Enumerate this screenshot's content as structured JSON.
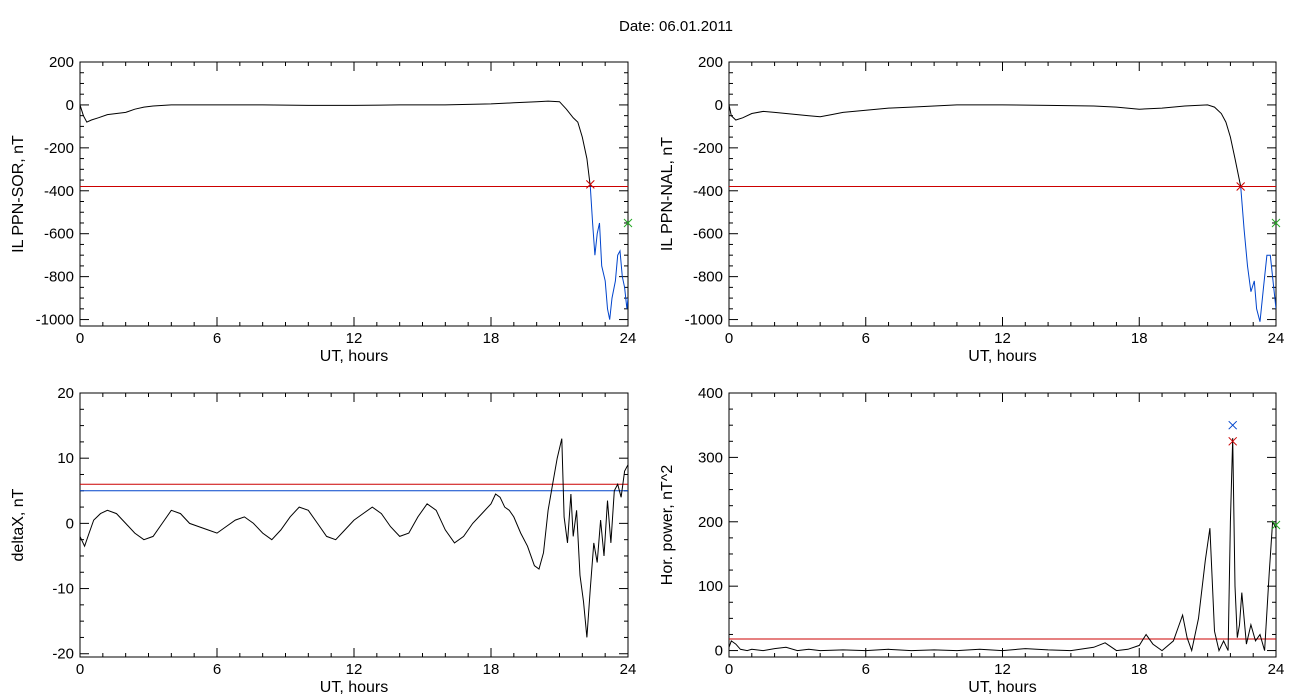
{
  "figure_title": "Date:  06.01.2011",
  "chart_data": [
    {
      "type": "line",
      "id": "panel-1",
      "xlabel": "UT, hours",
      "ylabel": "IL PPN-SOR, nT",
      "xlim": [
        0,
        24
      ],
      "ylim": [
        -1030,
        200
      ],
      "xticks": [
        0,
        6,
        12,
        18,
        24
      ],
      "yticks": [
        -1000,
        -800,
        -600,
        -400,
        -200,
        0,
        200
      ],
      "grid": false,
      "series": [
        {
          "color": "#000000",
          "x": [
            0,
            0.15,
            0.3,
            0.5,
            0.8,
            1.2,
            1.6,
            2.0,
            2.4,
            2.8,
            3.2,
            4,
            5,
            6,
            8,
            10,
            12,
            14,
            16,
            18,
            19,
            20,
            20.5,
            21,
            21.3,
            21.6,
            21.8,
            22.0,
            22.2,
            22.35
          ],
          "y": [
            0,
            -50,
            -80,
            -70,
            -60,
            -45,
            -40,
            -35,
            -20,
            -10,
            -5,
            0,
            0,
            0,
            0,
            -2,
            -2,
            0,
            0,
            5,
            10,
            15,
            18,
            15,
            -20,
            -60,
            -80,
            -150,
            -250,
            -380
          ]
        },
        {
          "color": "#0044cc",
          "x": [
            22.35,
            22.45,
            22.55,
            22.65,
            22.75,
            22.85,
            23.0,
            23.1,
            23.2,
            23.3,
            23.45,
            23.55,
            23.65,
            23.75,
            23.85,
            23.95,
            24.0
          ],
          "y": [
            -380,
            -550,
            -700,
            -600,
            -550,
            -750,
            -820,
            -950,
            -1000,
            -900,
            -820,
            -700,
            -680,
            -800,
            -850,
            -950,
            -900
          ]
        }
      ],
      "hlines": [
        {
          "y": -380,
          "color": "#cc0000"
        }
      ],
      "markers": [
        {
          "x": 22.35,
          "y": -370,
          "color": "#cc0000"
        },
        {
          "x": 24.0,
          "y": -550,
          "color": "#22aa22"
        }
      ]
    },
    {
      "type": "line",
      "id": "panel-2",
      "xlabel": "UT, hours",
      "ylabel": "IL PPN-NAL, nT",
      "xlim": [
        0,
        24
      ],
      "ylim": [
        -1030,
        200
      ],
      "xticks": [
        0,
        6,
        12,
        18,
        24
      ],
      "yticks": [
        -1000,
        -800,
        -600,
        -400,
        -200,
        0,
        200
      ],
      "grid": false,
      "series": [
        {
          "color": "#000000",
          "x": [
            0,
            0.1,
            0.3,
            0.6,
            1.0,
            1.5,
            2.0,
            2.5,
            3.0,
            3.5,
            4.0,
            4.5,
            5.0,
            6.0,
            7.0,
            8.0,
            9.0,
            10.0,
            12.0,
            14.0,
            16.0,
            17.0,
            18.0,
            19.0,
            20.0,
            21.0,
            21.3,
            21.6,
            21.8,
            22.0,
            22.2,
            22.45
          ],
          "y": [
            0,
            -50,
            -70,
            -60,
            -40,
            -30,
            -35,
            -40,
            -45,
            -50,
            -55,
            -45,
            -35,
            -25,
            -15,
            -10,
            -5,
            0,
            0,
            -2,
            -5,
            -10,
            -20,
            -15,
            -5,
            0,
            -10,
            -40,
            -80,
            -150,
            -250,
            -380
          ]
        },
        {
          "color": "#0044cc",
          "x": [
            22.45,
            22.6,
            22.75,
            22.9,
            23.05,
            23.15,
            23.3,
            23.45,
            23.6,
            23.75,
            23.9,
            24.0
          ],
          "y": [
            -380,
            -580,
            -750,
            -870,
            -820,
            -950,
            -1010,
            -850,
            -700,
            -700,
            -850,
            -950
          ]
        }
      ],
      "hlines": [
        {
          "y": -380,
          "color": "#cc0000"
        }
      ],
      "markers": [
        {
          "x": 22.45,
          "y": -380,
          "color": "#cc0000"
        },
        {
          "x": 24.0,
          "y": -550,
          "color": "#22aa22"
        }
      ]
    },
    {
      "type": "line",
      "id": "panel-3",
      "xlabel": "UT, hours",
      "ylabel": "deltaX, nT",
      "xlim": [
        0,
        24
      ],
      "ylim": [
        -20.5,
        20
      ],
      "xticks": [
        0,
        6,
        12,
        18,
        24
      ],
      "yticks": [
        -20,
        -10,
        0,
        10,
        20
      ],
      "grid": false,
      "series": [
        {
          "color": "#000000",
          "x": [
            0,
            0.2,
            0.4,
            0.6,
            0.9,
            1.2,
            1.6,
            2.0,
            2.4,
            2.8,
            3.2,
            3.6,
            4.0,
            4.4,
            4.8,
            5.2,
            5.6,
            6.0,
            6.4,
            6.8,
            7.2,
            7.6,
            8.0,
            8.4,
            8.8,
            9.2,
            9.6,
            10.0,
            10.4,
            10.8,
            11.2,
            11.6,
            12.0,
            12.4,
            12.8,
            13.2,
            13.6,
            14.0,
            14.4,
            14.8,
            15.2,
            15.6,
            16.0,
            16.4,
            16.8,
            17.2,
            17.6,
            18.0,
            18.2,
            18.4,
            18.6,
            18.8,
            19.0,
            19.3,
            19.6,
            19.9,
            20.1,
            20.3,
            20.5,
            20.7,
            20.9,
            21.1,
            21.2,
            21.35,
            21.5,
            21.6,
            21.75,
            21.9,
            22.05,
            22.2,
            22.35,
            22.5,
            22.65,
            22.8,
            22.95,
            23.1,
            23.25,
            23.4,
            23.55,
            23.7,
            23.85,
            24.0
          ],
          "y": [
            -2,
            -3.5,
            -1.5,
            0.5,
            1.5,
            2.0,
            1.5,
            0,
            -1.5,
            -2.5,
            -2.0,
            0,
            2.0,
            1.5,
            0,
            -0.5,
            -1.0,
            -1.5,
            -0.5,
            0.5,
            1.0,
            0,
            -1.5,
            -2.5,
            -1.0,
            1.0,
            2.5,
            2.0,
            0,
            -2.0,
            -2.5,
            -1.0,
            0.5,
            1.5,
            2.5,
            1.5,
            -0.5,
            -2.0,
            -1.5,
            1.0,
            3.0,
            2.0,
            -1.0,
            -3.0,
            -2.0,
            0,
            1.5,
            3.0,
            4.5,
            4.0,
            2.5,
            2.0,
            1.0,
            -1.5,
            -3.5,
            -6.5,
            -7.0,
            -4.5,
            2.0,
            6.0,
            10.0,
            13.0,
            1.0,
            -3.0,
            4.5,
            -2.0,
            2.0,
            -8.0,
            -12.0,
            -17.5,
            -10.0,
            -3.0,
            -6.0,
            0.5,
            -5.0,
            3.5,
            -3.0,
            5.0,
            6.0,
            4.0,
            8.0,
            9.0
          ]
        }
      ],
      "hlines": [
        {
          "y": 6,
          "color": "#cc0000"
        },
        {
          "y": 5,
          "color": "#0044cc"
        }
      ],
      "markers": []
    },
    {
      "type": "line",
      "id": "panel-4",
      "xlabel": "UT, hours",
      "ylabel": "Hor. power, nT^2",
      "xlim": [
        0,
        24
      ],
      "ylim": [
        -10,
        400
      ],
      "xticks": [
        0,
        6,
        12,
        18,
        24
      ],
      "yticks": [
        0,
        100,
        200,
        300,
        400
      ],
      "grid": false,
      "series": [
        {
          "color": "#000000",
          "x": [
            0,
            0.1,
            0.3,
            0.5,
            0.8,
            1.0,
            1.5,
            2.0,
            2.5,
            3.0,
            3.5,
            4.0,
            5.0,
            6.0,
            7.0,
            8.0,
            9.0,
            10.0,
            11.0,
            12.0,
            13.0,
            14.0,
            15.0,
            16.0,
            16.5,
            17.0,
            17.5,
            18.0,
            18.3,
            18.6,
            19.0,
            19.5,
            19.7,
            19.9,
            20.1,
            20.3,
            20.6,
            20.9,
            21.1,
            21.3,
            21.5,
            21.7,
            21.9,
            22.0,
            22.1,
            22.2,
            22.3,
            22.4,
            22.5,
            22.7,
            22.9,
            23.1,
            23.3,
            23.5,
            23.7,
            23.85,
            24.0
          ],
          "y": [
            5,
            15,
            10,
            2,
            0,
            2,
            0,
            3,
            5,
            0,
            2,
            0,
            1,
            0,
            2,
            0,
            1,
            0,
            2,
            0,
            3,
            1,
            0,
            5,
            12,
            0,
            2,
            8,
            25,
            10,
            0,
            15,
            35,
            55,
            20,
            0,
            50,
            140,
            190,
            30,
            0,
            15,
            0,
            200,
            330,
            100,
            20,
            40,
            90,
            10,
            40,
            15,
            25,
            0,
            120,
            200,
            190
          ]
        }
      ],
      "hlines": [
        {
          "y": 18,
          "color": "#cc0000"
        }
      ],
      "markers": [
        {
          "x": 22.1,
          "y": 350,
          "color": "#0044cc"
        },
        {
          "x": 22.1,
          "y": 325,
          "color": "#cc0000"
        },
        {
          "x": 24.0,
          "y": 195,
          "color": "#22aa22"
        }
      ]
    }
  ]
}
